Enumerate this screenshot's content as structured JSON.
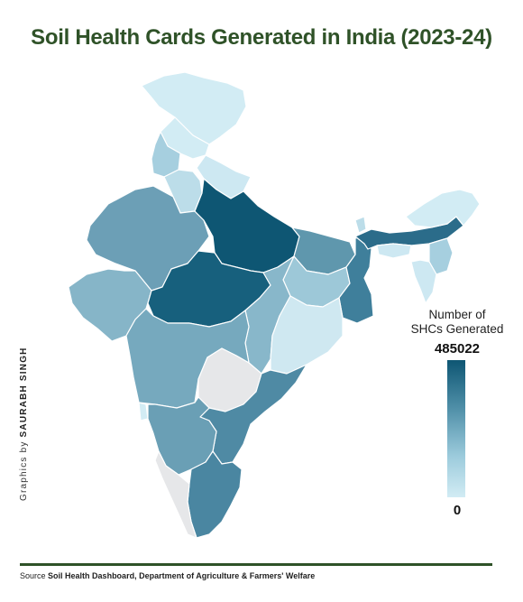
{
  "title": "Soil Health Cards Generated in India (2023-24)",
  "legend": {
    "title_line1": "Number of",
    "title_line2": "SHCs Generated",
    "max_label": "485022",
    "min_label": "0",
    "color_high": "#0e5673",
    "color_low": "#d2ecf4",
    "no_data_color": "#e6e7e9"
  },
  "credit": {
    "prefix": "Graphics by",
    "author": "SAURABH SINGH"
  },
  "source": {
    "prefix": "Source",
    "text": "Soil Health Dashboard, Department of Agriculture & Farmers' Welfare"
  },
  "colors": {
    "title": "#2f5228",
    "border": "#ffffff"
  }
}
